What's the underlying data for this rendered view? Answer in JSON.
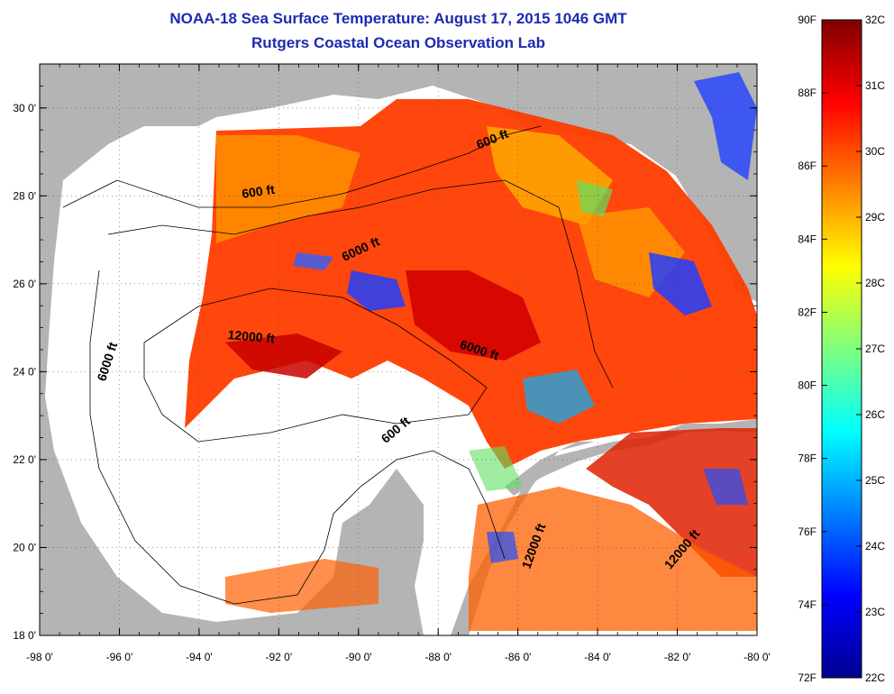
{
  "title": "NOAA-18 Sea Surface Temperature:  August 17, 2015 1046 GMT",
  "subtitle": "Rutgers Coastal Ocean Observation Lab",
  "map": {
    "lon_range": [
      -98,
      -80
    ],
    "lat_range": [
      18,
      31
    ],
    "lon_ticks": [
      "-98 0'",
      "-96 0'",
      "-94 0'",
      "-92 0'",
      "-90 0'",
      "-88 0'",
      "-86 0'",
      "-84 0'",
      "-82 0'",
      "-80 0'"
    ],
    "lat_ticks": [
      "18 0'",
      "20 0'",
      "22 0'",
      "24 0'",
      "26 0'",
      "28 0'",
      "30 0'"
    ],
    "grid": "dotted",
    "land_color": "#b4b4b4",
    "no_data_color": "#ffffff",
    "contour_labels": [
      {
        "text": "600 ft",
        "lon": -92.5,
        "lat": 28.0,
        "angle": -8
      },
      {
        "text": "600 ft",
        "lon": -86.6,
        "lat": 29.2,
        "angle": -22
      },
      {
        "text": "6000 ft",
        "lon": -89.9,
        "lat": 26.7,
        "angle": -25
      },
      {
        "text": "6000 ft",
        "lon": -96.2,
        "lat": 24.2,
        "angle": -72
      },
      {
        "text": "12000 ft",
        "lon": -92.7,
        "lat": 24.7,
        "angle": 5
      },
      {
        "text": "6000 ft",
        "lon": -87.0,
        "lat": 24.4,
        "angle": 18
      },
      {
        "text": "600 ft",
        "lon": -89.0,
        "lat": 22.6,
        "angle": -40
      },
      {
        "text": "12000 ft",
        "lon": -85.5,
        "lat": 20.0,
        "angle": -70
      },
      {
        "text": "12000 ft",
        "lon": -81.8,
        "lat": 19.9,
        "angle": -50
      }
    ]
  },
  "colorbar": {
    "f_labels": [
      "90F",
      "88F",
      "86F",
      "84F",
      "82F",
      "80F",
      "78F",
      "76F",
      "74F",
      "72F"
    ],
    "c_labels": [
      "32C",
      "31C",
      "30C",
      "29C",
      "28C",
      "27C",
      "26C",
      "25C",
      "24C",
      "23C",
      "22C"
    ],
    "f_range": [
      72,
      90
    ],
    "c_range": [
      22,
      32
    ],
    "colormap": [
      "#00008f",
      "#0000ff",
      "#007fff",
      "#00ffff",
      "#7fff7f",
      "#ffff00",
      "#ff7f00",
      "#ff0000",
      "#7f0000"
    ]
  }
}
